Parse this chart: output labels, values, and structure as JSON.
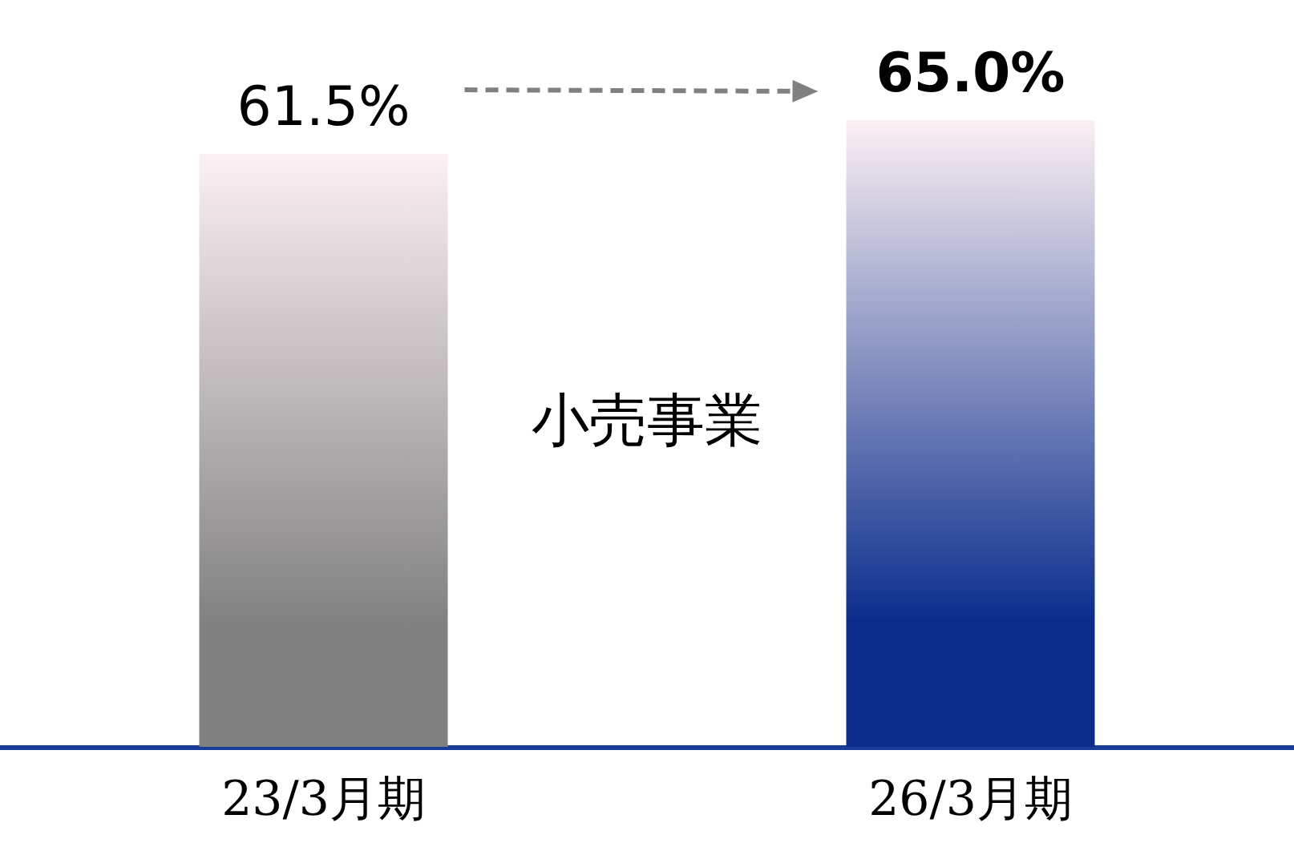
{
  "chart_data": {
    "type": "bar",
    "categories": [
      "23/3月期",
      "26/3月期"
    ],
    "values": [
      61.5,
      65.0
    ],
    "colors": [
      "#808080",
      "#0a2d8c"
    ],
    "value_labels": [
      "61.5%",
      "65.0%"
    ],
    "annotations": [
      "小売事業"
    ]
  }
}
